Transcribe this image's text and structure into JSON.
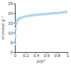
{
  "chart_data": {
    "type": "line",
    "x_label": "p/p°",
    "y_label": "nᵃ/mmol g⁻¹",
    "x": [
      0.002,
      0.005,
      0.01,
      0.02,
      0.03,
      0.05,
      0.07,
      0.1,
      0.15,
      0.2,
      0.25,
      0.3,
      0.35,
      0.4,
      0.45,
      0.5,
      0.55,
      0.6,
      0.65,
      0.7,
      0.75,
      0.8,
      0.85,
      0.9,
      0.95,
      1.0
    ],
    "values": [
      4,
      8,
      12,
      14.5,
      15.5,
      16.5,
      17,
      17.5,
      18,
      18.3,
      18.6,
      18.8,
      19,
      19.1,
      19.3,
      19.4,
      19.5,
      19.6,
      19.8,
      19.9,
      20,
      20.1,
      20.2,
      20.4,
      20.6,
      20.8
    ],
    "color": "#5aaee0",
    "marker": "circle",
    "line_style": "solid",
    "xlim": [
      0,
      1
    ],
    "xticks": [
      0,
      0.2,
      0.4,
      0.6,
      0.8,
      1
    ],
    "ylim": [
      0,
      25
    ],
    "yticks": [
      0,
      5,
      10,
      15,
      20,
      25
    ],
    "grid": false
  }
}
